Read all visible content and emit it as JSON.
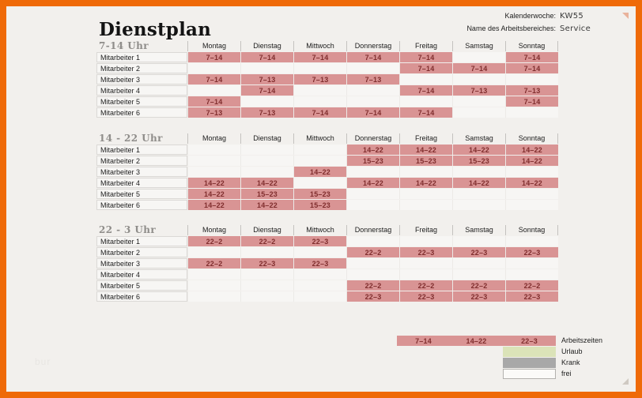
{
  "page": {
    "title": "Dienstplan"
  },
  "meta": {
    "week_label": "Kalenderwoche:",
    "week_value": "KW55",
    "area_label": "Name des Arbeitsbereiches:",
    "area_value": "Service"
  },
  "days": [
    "Montag",
    "Dienstag",
    "Mittwoch",
    "Donnerstag",
    "Freitag",
    "Samstag",
    "Sonntag"
  ],
  "employees": [
    "Mitarbeiter 1",
    "Mitarbeiter 2",
    "Mitarbeiter 3",
    "Mitarbeiter 4",
    "Mitarbeiter 5",
    "Mitarbeiter 6"
  ],
  "shifts": [
    {
      "title": "7-14 Uhr",
      "rows": [
        [
          "7–14",
          "7–14",
          "7–14",
          "7–14",
          "7–14",
          "",
          "7–14"
        ],
        [
          "",
          "",
          "",
          "",
          "7–14",
          "7–14",
          "7–14"
        ],
        [
          "7–14",
          "7–13",
          "7–13",
          "7–13",
          "",
          "",
          ""
        ],
        [
          "",
          "7–14",
          "",
          "",
          "7–14",
          "7–13",
          "7–13"
        ],
        [
          "7–14",
          "",
          "",
          "",
          "",
          "",
          "7–14"
        ],
        [
          "7–13",
          "7–13",
          "7–14",
          "7–14",
          "7–14",
          "",
          ""
        ]
      ]
    },
    {
      "title": "14 - 22 Uhr",
      "rows": [
        [
          "",
          "",
          "",
          "14–22",
          "14–22",
          "14–22",
          "14–22"
        ],
        [
          "",
          "",
          "",
          "15–23",
          "15–23",
          "15–23",
          "14–22"
        ],
        [
          "",
          "",
          "14–22",
          "",
          "",
          "",
          ""
        ],
        [
          "14–22",
          "14–22",
          "",
          "14–22",
          "14–22",
          "14–22",
          "14–22"
        ],
        [
          "14–22",
          "15–23",
          "15–23",
          "",
          "",
          "",
          ""
        ],
        [
          "14–22",
          "14–22",
          "15–23",
          "",
          "",
          "",
          ""
        ]
      ]
    },
    {
      "title": "22 - 3 Uhr",
      "rows": [
        [
          "22–2",
          "22–2",
          "22–3",
          "",
          "",
          "",
          ""
        ],
        [
          "",
          "",
          "",
          "22–2",
          "22–3",
          "22–3",
          "22–3"
        ],
        [
          "22–2",
          "22–3",
          "22–3",
          "",
          "",
          "",
          ""
        ],
        [
          "",
          "",
          "",
          "",
          "",
          "",
          ""
        ],
        [
          "",
          "",
          "",
          "22–2",
          "22–2",
          "22–2",
          "22–2"
        ],
        [
          "",
          "",
          "",
          "22–3",
          "22–3",
          "22–3",
          "22–3"
        ]
      ]
    }
  ],
  "legend": {
    "work_shift_examples": [
      "7–14",
      "14–22",
      "22–3"
    ],
    "items": [
      {
        "label": "Arbeitszeiten",
        "color": "#d99494",
        "type": "work"
      },
      {
        "label": "Urlaub",
        "color": "#dbe3b8",
        "type": "swatch"
      },
      {
        "label": "Krank",
        "color": "#a8a8a8",
        "type": "swatch"
      },
      {
        "label": "frei",
        "color": "#fbfaf8",
        "type": "outlined"
      }
    ]
  },
  "colors": {
    "frame_orange": "#ef6a08",
    "sheet_background": "#f2f0ed",
    "shift_fill": "#d99494",
    "shift_text": "#802e2e"
  },
  "watermark": "bur"
}
